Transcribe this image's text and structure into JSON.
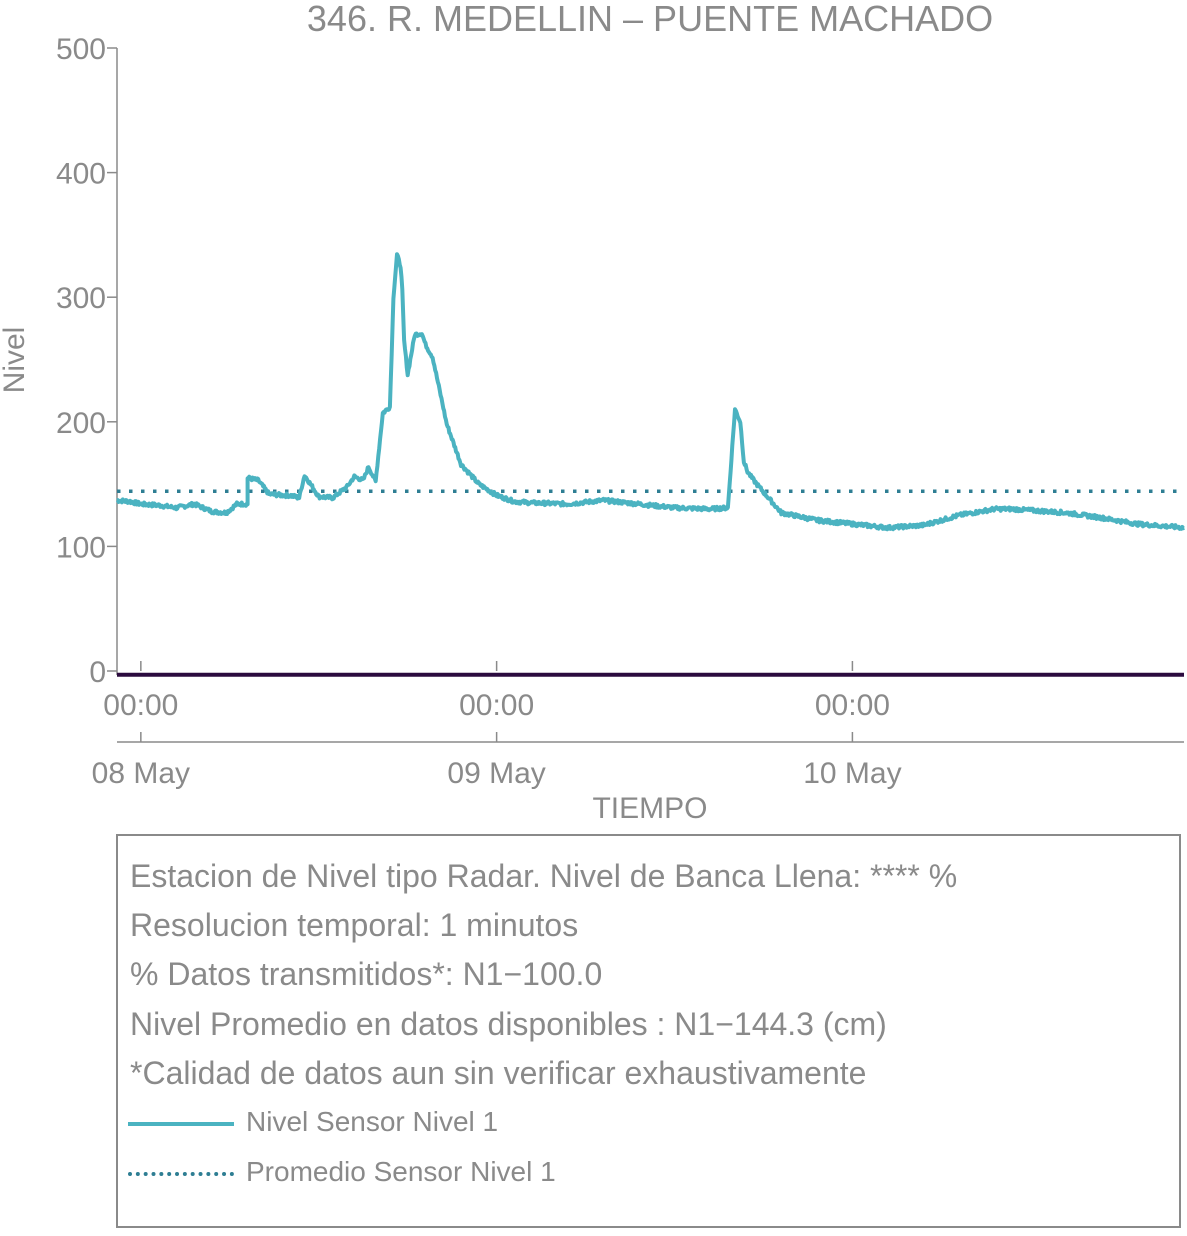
{
  "chart_data": {
    "type": "line",
    "title": "346. R. MEDELLIN – PUENTE MACHADO",
    "xlabel": "TIEMPO",
    "ylabel": "Nivel",
    "ylim": [
      0,
      500
    ],
    "xlim_days": [
      -0.067,
      2.932
    ],
    "y_ticks": [
      "0",
      "100",
      "200",
      "300",
      "400",
      "500"
    ],
    "x_tick_times": [
      "00:00",
      "00:00",
      "00:00"
    ],
    "x_tick_dates": [
      "08 May",
      "09 May",
      "10 May"
    ],
    "series": [
      {
        "name": "Nivel Sensor Nivel 1",
        "style": "solid",
        "color": "#4bb3c1",
        "x": [
          -0.067,
          -0.03,
          0.0,
          0.05,
          0.1,
          0.15,
          0.2,
          0.24,
          0.27,
          0.3,
          0.3,
          0.33,
          0.36,
          0.4,
          0.42,
          0.445,
          0.46,
          0.47,
          0.5,
          0.54,
          0.58,
          0.6,
          0.625,
          0.64,
          0.66,
          0.68,
          0.7,
          0.71,
          0.72,
          0.73,
          0.735,
          0.74,
          0.75,
          0.77,
          0.79,
          0.8,
          0.82,
          0.84,
          0.86,
          0.9,
          0.95,
          1.0,
          1.05,
          1.1,
          1.2,
          1.3,
          1.4,
          1.5,
          1.6,
          1.65,
          1.67,
          1.685,
          1.695,
          1.705,
          1.72,
          1.74,
          1.8,
          1.9,
          2.0,
          2.1,
          2.2,
          2.3,
          2.4,
          2.45,
          2.5,
          2.6,
          2.7,
          2.8,
          2.932
        ],
        "y": [
          137,
          136,
          134,
          133,
          131,
          134,
          128,
          127,
          134,
          134,
          155,
          153,
          142,
          141,
          141,
          139,
          157,
          153,
          140,
          139,
          148,
          156,
          153,
          164,
          152,
          207,
          212,
          300,
          334,
          325,
          305,
          265,
          238,
          270,
          271,
          262,
          252,
          225,
          198,
          166,
          150,
          141,
          136,
          135,
          134,
          137,
          134,
          131,
          130,
          131,
          210,
          200,
          168,
          160,
          154,
          147,
          127,
          121,
          118,
          115,
          117,
          125,
          130,
          130,
          129,
          127,
          123,
          118,
          115
        ]
      },
      {
        "name": "Promedio Sensor Nivel 1",
        "style": "dotted",
        "color": "#2e7e93",
        "value": 144.3
      },
      {
        "name": "",
        "style": "solid",
        "color": "#2b0b3f",
        "value": -3
      }
    ]
  },
  "info": {
    "lines": [
      "Estacion de Nivel tipo Radar. Nivel de Banca Llena: **** %",
      "Resolucion temporal: 1 minutos",
      "% Datos transmitidos*: N1−100.0",
      "Nivel Promedio en datos disponibles : N1−144.3 (cm)",
      "*Calidad de datos aun sin verificar exhaustivamente"
    ],
    "legend": [
      "Nivel Sensor Nivel 1",
      "Promedio Sensor Nivel 1"
    ]
  }
}
